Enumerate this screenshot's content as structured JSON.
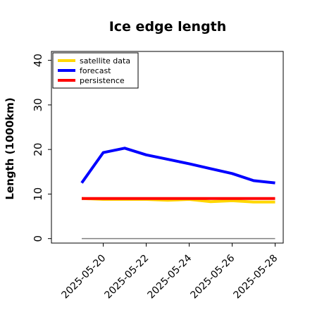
{
  "chart_data": {
    "type": "line",
    "title": "Ice edge length",
    "xlabel": "",
    "ylabel": "Length (1000km)",
    "x": [
      "2025-05-19",
      "2025-05-20",
      "2025-05-21",
      "2025-05-22",
      "2025-05-23",
      "2025-05-24",
      "2025-05-25",
      "2025-05-26",
      "2025-05-27",
      "2025-05-28"
    ],
    "x_ticks": [
      "2025-05-20",
      "2025-05-22",
      "2025-05-24",
      "2025-05-26",
      "2025-05-28"
    ],
    "highlighted_tick": "2025-05-20",
    "highlight_color": "#228b22",
    "ylim": [
      -1,
      42
    ],
    "y_ticks": [
      0,
      10,
      20,
      30,
      40
    ],
    "baseline": 0,
    "grid": false,
    "legend_position": "top-left",
    "series": [
      {
        "name": "satellite data",
        "color": "#ffd700",
        "values": [
          9.0,
          8.8,
          8.8,
          8.8,
          8.6,
          8.8,
          8.3,
          8.5,
          8.2,
          8.2
        ]
      },
      {
        "name": "forecast",
        "color": "#0000ff",
        "values": [
          12.5,
          19.3,
          20.3,
          18.8,
          17.8,
          16.8,
          15.7,
          14.6,
          13.0,
          12.5
        ]
      },
      {
        "name": "persistence",
        "color": "#ff0000",
        "values": [
          9.0,
          9.0,
          9.0,
          9.0,
          9.0,
          9.0,
          9.0,
          9.0,
          9.0,
          9.0
        ]
      }
    ]
  }
}
